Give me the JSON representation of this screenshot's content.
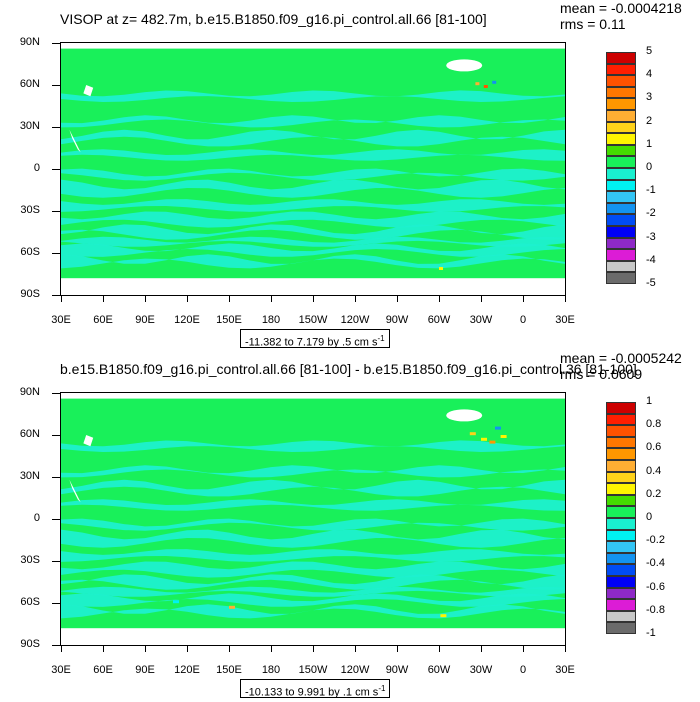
{
  "colors": {
    "land": "#ffffff",
    "ocean_base": "#19f05a",
    "ocean_secondary": "#1ef0cf"
  },
  "palette": [
    "#6b6b6b",
    "#c8c8c8",
    "#dc1cd6",
    "#8e29c7",
    "#0000f5",
    "#004cf5",
    "#1393f0",
    "#33c5f5",
    "#00f2f2",
    "#19f0cf",
    "#19f05a",
    "#44dd00",
    "#fff400",
    "#ffd21a",
    "#ffae33",
    "#ff9700",
    "#ff7700",
    "#ff5200",
    "#ff1e00",
    "#cc0000"
  ],
  "panels": [
    {
      "title": "VISOP at z= 482.7m, b.e15.B1850.f09_g16.pi_control.all.66 [81-100]",
      "mean": "mean = -0.0004218",
      "rms": "rms = 0.11",
      "info": "-11.382 to 7.179 by .5 cm s",
      "info_sup": "-1",
      "legend_labels": [
        "5",
        "4",
        "3",
        "2",
        "1",
        "0",
        "-1",
        "-2",
        "-3",
        "-4",
        "-5"
      ]
    },
    {
      "title": "b.e15.B1850.f09_g16.pi_control.all.66 [81-100] - b.e15.B1850.f09_g16.pi_control.36 [81-100]",
      "mean": "mean = -0.0005242",
      "rms": "rms = 0.0609",
      "info": "-10.133 to 9.991 by .1 cm s",
      "info_sup": "-1",
      "legend_labels": [
        "1",
        "0.8",
        "0.6",
        "0.4",
        "0.2",
        "0",
        "-0.2",
        "-0.4",
        "-0.6",
        "-0.8",
        "-1"
      ]
    }
  ],
  "chart_data": [
    {
      "type": "heatmap",
      "title": "VISOP at z= 482.7m, b.e15.B1850.f09_g16.pi_control.all.66 [81-100]",
      "subtitle": "mean = -0.0004218, rms = 0.11",
      "x_ticks": [
        "30E",
        "60E",
        "90E",
        "120E",
        "150E",
        "180",
        "150W",
        "120W",
        "90W",
        "60W",
        "30W",
        "0",
        "30E"
      ],
      "y_ticks": [
        "90N",
        "60N",
        "30N",
        "0",
        "30S",
        "60S",
        "90S"
      ],
      "xlim": [
        30,
        390
      ],
      "ylim": [
        -90,
        90
      ],
      "color_levels": [
        -5,
        -4.5,
        -4,
        -3.5,
        -3,
        -2.5,
        -2,
        -1.5,
        -1,
        -0.5,
        0,
        0.5,
        1,
        1.5,
        2,
        2.5,
        3,
        3.5,
        4,
        4.5,
        5
      ],
      "range_note": "-11.382 to 7.179 by .5 cm s-1",
      "grid": false,
      "legend": "right"
    },
    {
      "type": "heatmap",
      "title": "b.e15.B1850.f09_g16.pi_control.all.66 [81-100] - b.e15.B1850.f09_g16.pi_control.36 [81-100]",
      "subtitle": "mean = -0.0005242, rms = 0.0609",
      "x_ticks": [
        "30E",
        "60E",
        "90E",
        "120E",
        "150E",
        "180",
        "150W",
        "120W",
        "90W",
        "60W",
        "30W",
        "0",
        "30E"
      ],
      "y_ticks": [
        "90N",
        "60N",
        "30N",
        "0",
        "30S",
        "60S",
        "90S"
      ],
      "xlim": [
        30,
        390
      ],
      "ylim": [
        -90,
        90
      ],
      "color_levels": [
        -1,
        -0.9,
        -0.8,
        -0.7,
        -0.6,
        -0.5,
        -0.4,
        -0.3,
        -0.2,
        -0.1,
        0,
        0.1,
        0.2,
        0.3,
        0.4,
        0.5,
        0.6,
        0.7,
        0.8,
        0.9,
        1
      ],
      "range_note": "-10.133 to 9.991 by .1 cm s-1",
      "grid": false,
      "legend": "right"
    }
  ]
}
